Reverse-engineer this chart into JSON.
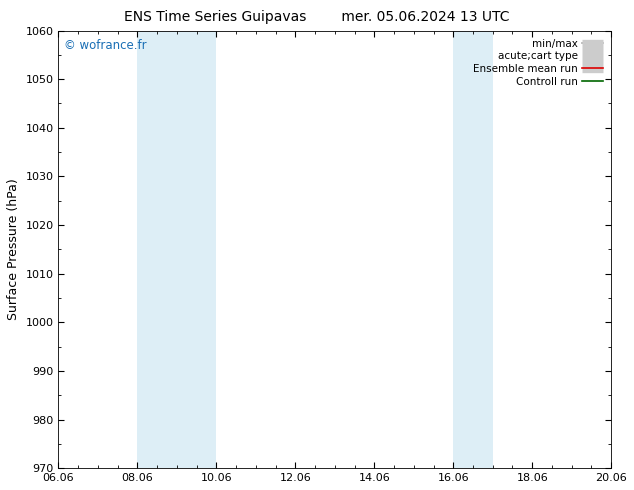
{
  "title_left": "ENS Time Series Guipavas",
  "title_right": "mer. 05.06.2024 13 UTC",
  "ylabel": "Surface Pressure (hPa)",
  "ylim": [
    970,
    1060
  ],
  "yticks": [
    970,
    980,
    990,
    1000,
    1010,
    1020,
    1030,
    1040,
    1050,
    1060
  ],
  "xtick_labels": [
    "06.06",
    "08.06",
    "10.06",
    "12.06",
    "14.06",
    "16.06",
    "18.06",
    "20.06"
  ],
  "xtick_positions": [
    0,
    2,
    4,
    6,
    8,
    10,
    12,
    14
  ],
  "x_min": 0,
  "x_max": 14,
  "shaded_bands": [
    {
      "x_start": 2,
      "x_end": 4
    },
    {
      "x_start": 10,
      "x_end": 11
    }
  ],
  "shaded_color": "#ddeef6",
  "background_color": "#ffffff",
  "watermark": "© wofrance.fr",
  "watermark_color": "#1a6fb5",
  "legend_items": [
    {
      "label": "min/max",
      "color": "#aaaaaa",
      "lw": 1.2,
      "linestyle": "-"
    },
    {
      "label": "acute;cart type",
      "color": "#cccccc",
      "lw": 6,
      "linestyle": "-"
    },
    {
      "label": "Ensemble mean run",
      "color": "#dd0000",
      "lw": 1.2,
      "linestyle": "-"
    },
    {
      "label": "Controll run",
      "color": "#006600",
      "lw": 1.2,
      "linestyle": "-"
    }
  ],
  "title_fontsize": 10,
  "ylabel_fontsize": 9,
  "tick_fontsize": 8,
  "legend_fontsize": 7.5,
  "watermark_fontsize": 8.5
}
